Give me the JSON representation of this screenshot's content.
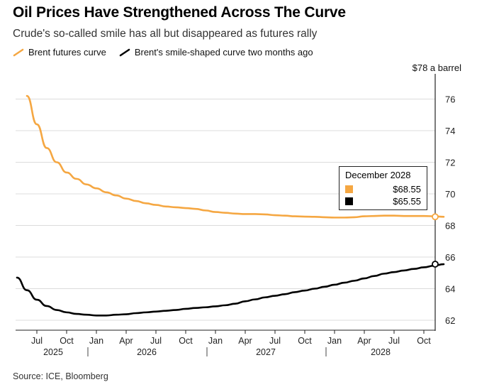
{
  "header": {
    "title": "Oil Prices Have Strengthened Across The Curve",
    "subtitle": "Crude's so-called smile has all but disappeared as futures rally"
  },
  "legend": {
    "items": [
      {
        "label": "Brent futures curve",
        "color": "#f5a742"
      },
      {
        "label": "Brent's smile-shaped curve two months ago",
        "color": "#000000"
      }
    ]
  },
  "unit_label": "$78 a barrel",
  "source": "Source: ICE, Bloomberg",
  "tooltip": {
    "title": "December 2028",
    "rows": [
      {
        "value": "$68.55",
        "color": "#f5a742"
      },
      {
        "value": "$65.55",
        "color": "#000000"
      }
    ]
  },
  "chart_data": {
    "type": "line",
    "ylim": [
      61.5,
      78
    ],
    "yticks": [
      62,
      64,
      66,
      68,
      70,
      72,
      74,
      76
    ],
    "grid": true,
    "y_axis_position": "right",
    "x_month_labels": [
      "Jul",
      "Oct",
      "Jan",
      "Apr",
      "Jul",
      "Oct",
      "Jan",
      "Apr",
      "Jul",
      "Oct",
      "Jan",
      "Apr",
      "Jul",
      "Oct"
    ],
    "x_year_labels": [
      "2025",
      "2026",
      "2027",
      "2028"
    ],
    "x_start": "2025-05",
    "series": [
      {
        "name": "Brent futures curve",
        "color": "#f5a742",
        "x": [
          "2025-06",
          "2025-07",
          "2025-08",
          "2025-09",
          "2025-10",
          "2025-11",
          "2025-12",
          "2026-01",
          "2026-02",
          "2026-03",
          "2026-04",
          "2026-05",
          "2026-06",
          "2026-07",
          "2026-08",
          "2026-09",
          "2026-10",
          "2026-11",
          "2026-12",
          "2027-01",
          "2027-02",
          "2027-03",
          "2027-04",
          "2027-05",
          "2027-06",
          "2027-07",
          "2027-08",
          "2027-09",
          "2027-10",
          "2027-11",
          "2027-12",
          "2028-01",
          "2028-02",
          "2028-03",
          "2028-04",
          "2028-05",
          "2028-06",
          "2028-07",
          "2028-08",
          "2028-09",
          "2028-10",
          "2028-11",
          "2028-12"
        ],
        "y": [
          76.2,
          74.4,
          72.9,
          72.0,
          71.35,
          70.95,
          70.6,
          70.35,
          70.1,
          69.9,
          69.7,
          69.55,
          69.4,
          69.3,
          69.2,
          69.15,
          69.1,
          69.05,
          68.95,
          68.85,
          68.8,
          68.75,
          68.72,
          68.72,
          68.7,
          68.65,
          68.62,
          68.58,
          68.56,
          68.55,
          68.52,
          68.5,
          68.5,
          68.52,
          68.58,
          68.6,
          68.62,
          68.62,
          68.6,
          68.6,
          68.6,
          68.58,
          68.55
        ]
      },
      {
        "name": "Brent's smile-shaped curve two months ago",
        "color": "#000000",
        "x": [
          "2025-05",
          "2025-06",
          "2025-07",
          "2025-08",
          "2025-09",
          "2025-10",
          "2025-11",
          "2025-12",
          "2026-01",
          "2026-02",
          "2026-03",
          "2026-04",
          "2026-05",
          "2026-06",
          "2026-07",
          "2026-08",
          "2026-09",
          "2026-10",
          "2026-11",
          "2026-12",
          "2027-01",
          "2027-02",
          "2027-03",
          "2027-04",
          "2027-05",
          "2027-06",
          "2027-07",
          "2027-08",
          "2027-09",
          "2027-10",
          "2027-11",
          "2027-12",
          "2028-01",
          "2028-02",
          "2028-03",
          "2028-04",
          "2028-05",
          "2028-06",
          "2028-07",
          "2028-08",
          "2028-09",
          "2028-10",
          "2028-11",
          "2028-12"
        ],
        "y": [
          64.7,
          63.9,
          63.3,
          62.9,
          62.65,
          62.5,
          62.4,
          62.35,
          62.3,
          62.3,
          62.35,
          62.38,
          62.45,
          62.5,
          62.55,
          62.6,
          62.65,
          62.72,
          62.78,
          62.82,
          62.88,
          62.95,
          63.05,
          63.2,
          63.32,
          63.45,
          63.55,
          63.65,
          63.78,
          63.88,
          64.0,
          64.12,
          64.25,
          64.38,
          64.5,
          64.65,
          64.8,
          64.95,
          65.05,
          65.15,
          65.25,
          65.35,
          65.45,
          65.55
        ]
      }
    ],
    "highlight": {
      "x": "2028-12",
      "values": [
        68.55,
        65.55
      ]
    }
  }
}
